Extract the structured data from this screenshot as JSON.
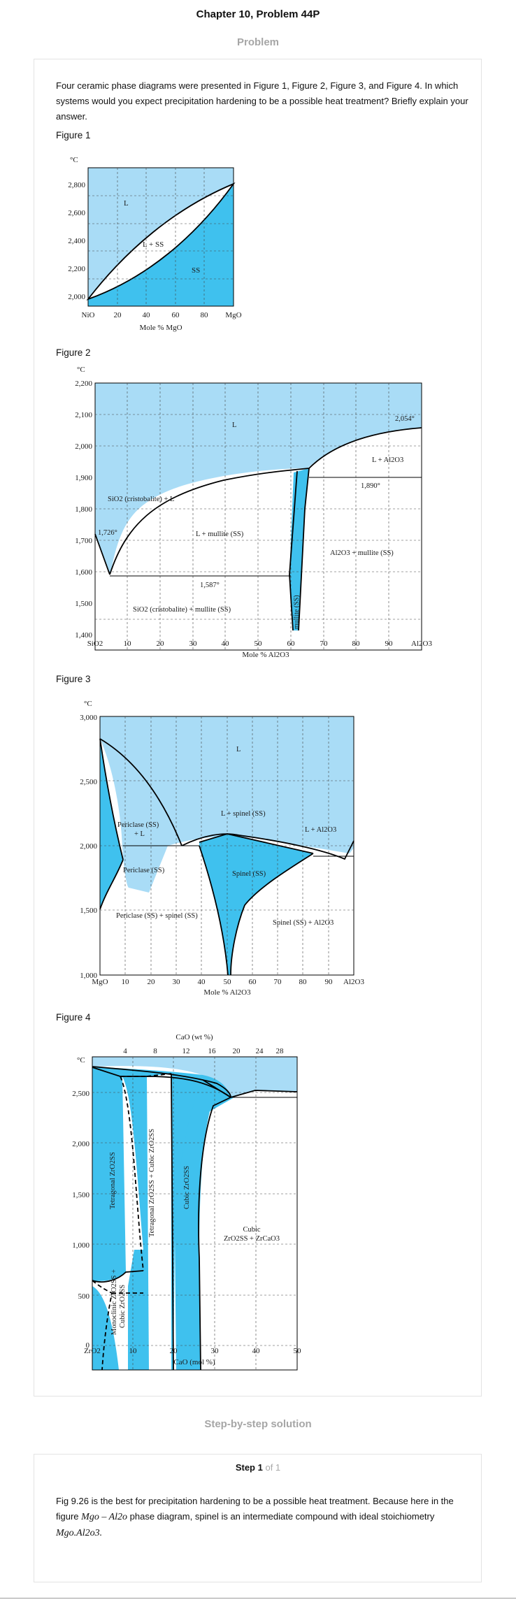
{
  "header": {
    "title": "Chapter 10, Problem 44P"
  },
  "problem": {
    "section_label": "Problem",
    "text": "Four ceramic phase diagrams were presented in Figure 1, Figure 2, Figure 3, and Figure 4. In which systems would you expect precipitation hardening to be a possible heat treatment? Briefly explain your answer."
  },
  "figures": {
    "fig1": {
      "label": "Figure 1",
      "unit": "°C",
      "y_ticks": [
        "2,800",
        "2,600",
        "2,400",
        "2,200",
        "2,000"
      ],
      "x_ticks": [
        "NiO",
        "20",
        "40",
        "60",
        "80",
        "MgO"
      ],
      "xlabel": "Mole % MgO",
      "regions": {
        "liquid": "L",
        "two_phase": "L + SS",
        "solid": "SS"
      }
    },
    "fig2": {
      "label": "Figure 2",
      "unit": "°C",
      "y_ticks": [
        "2,200",
        "2,100",
        "2,000",
        "1,900",
        "1,800",
        "1,700",
        "1,600",
        "1,500",
        "1,400"
      ],
      "x_ticks": [
        "SiO2",
        "10",
        "20",
        "30",
        "40",
        "50",
        "60",
        "70",
        "80",
        "90",
        "Al2O3"
      ],
      "xlabel": "Mole % Al2O3",
      "annotations": {
        "liquid": "L",
        "t2054": "2,054°",
        "l_al2o3": "L + Al2O3",
        "t1890": "1,890°",
        "cristobalite_l": "SiO2 (cristobalite) + L",
        "t1726": "1,726°",
        "l_mullite": "L + mullite (SS)",
        "al2o3_mullite": "Al2O3 + mullite (SS)",
        "t1587": "1,587°",
        "cristobalite_mullite": "SiO2 (cristobalite) + mullite (SS)",
        "mullite": "mullite (SS)"
      }
    },
    "fig3": {
      "label": "Figure 3",
      "unit": "°C",
      "y_ticks": [
        "3,000",
        "2,500",
        "2,000",
        "1,500",
        "1,000"
      ],
      "x_ticks": [
        "MgO",
        "10",
        "20",
        "30",
        "40",
        "50",
        "60",
        "70",
        "80",
        "90",
        "Al2O3"
      ],
      "xlabel": "Mole % Al2O3",
      "annotations": {
        "liquid": "L",
        "l_spinel": "L + spinel (SS)",
        "l_al2o3": "L + Al2O3",
        "periclase_l_1": "Periclase (SS)",
        "periclase_l_2": "+ L",
        "periclase": "Periclase (SS)",
        "spinel": "Spinel (SS)",
        "periclase_spinel": "Periclase (SS) + spinel (SS)",
        "spinel_al2o3": "Spinel (SS) + Al2O3"
      }
    },
    "fig4": {
      "label": "Figure 4",
      "unit": "°C",
      "top_axis_label": "CaO (wt %)",
      "top_ticks": [
        "4",
        "8",
        "12",
        "16",
        "20",
        "24",
        "28"
      ],
      "y_ticks": [
        "2,500",
        "2,000",
        "1,500",
        "1,000",
        "500",
        "0"
      ],
      "x_ticks": [
        "ZrO2",
        "10",
        "20",
        "30",
        "40",
        "50"
      ],
      "xlabel": "CaO (mol %)",
      "annotations": {
        "tetragonal": "Tetragonal ZrO2SS",
        "tetragonal_cubic": "Tetragonal ZrO2SS + Cubic ZrO2SS",
        "cubic": "Cubic ZrO2SS",
        "cubic_zrcao3_1": "Cubic",
        "cubic_zrcao3_2": "ZrO2SS + ZrCaO3",
        "monoclinic_1": "Monoclinic ZrO2SS +",
        "monoclinic_2": "Cubic ZrO2SS"
      }
    }
  },
  "solution": {
    "section_label": "Step-by-step solution",
    "step_label": "Step 1",
    "step_of": "of 1",
    "text_1": "Fig 9.26 is the best for precipitation hardening to be a possible heat treatment. Because here in the figure",
    "math_1": "Mgo – Al2o",
    "text_2": "phase diagram, spinel is an intermediate compound with ideal stoichiometry",
    "math_2": "Mgo.Al2o3."
  },
  "colors": {
    "light_blue": "#a9dcf6",
    "medium_blue": "#3fc1ee",
    "white": "#ffffff"
  }
}
